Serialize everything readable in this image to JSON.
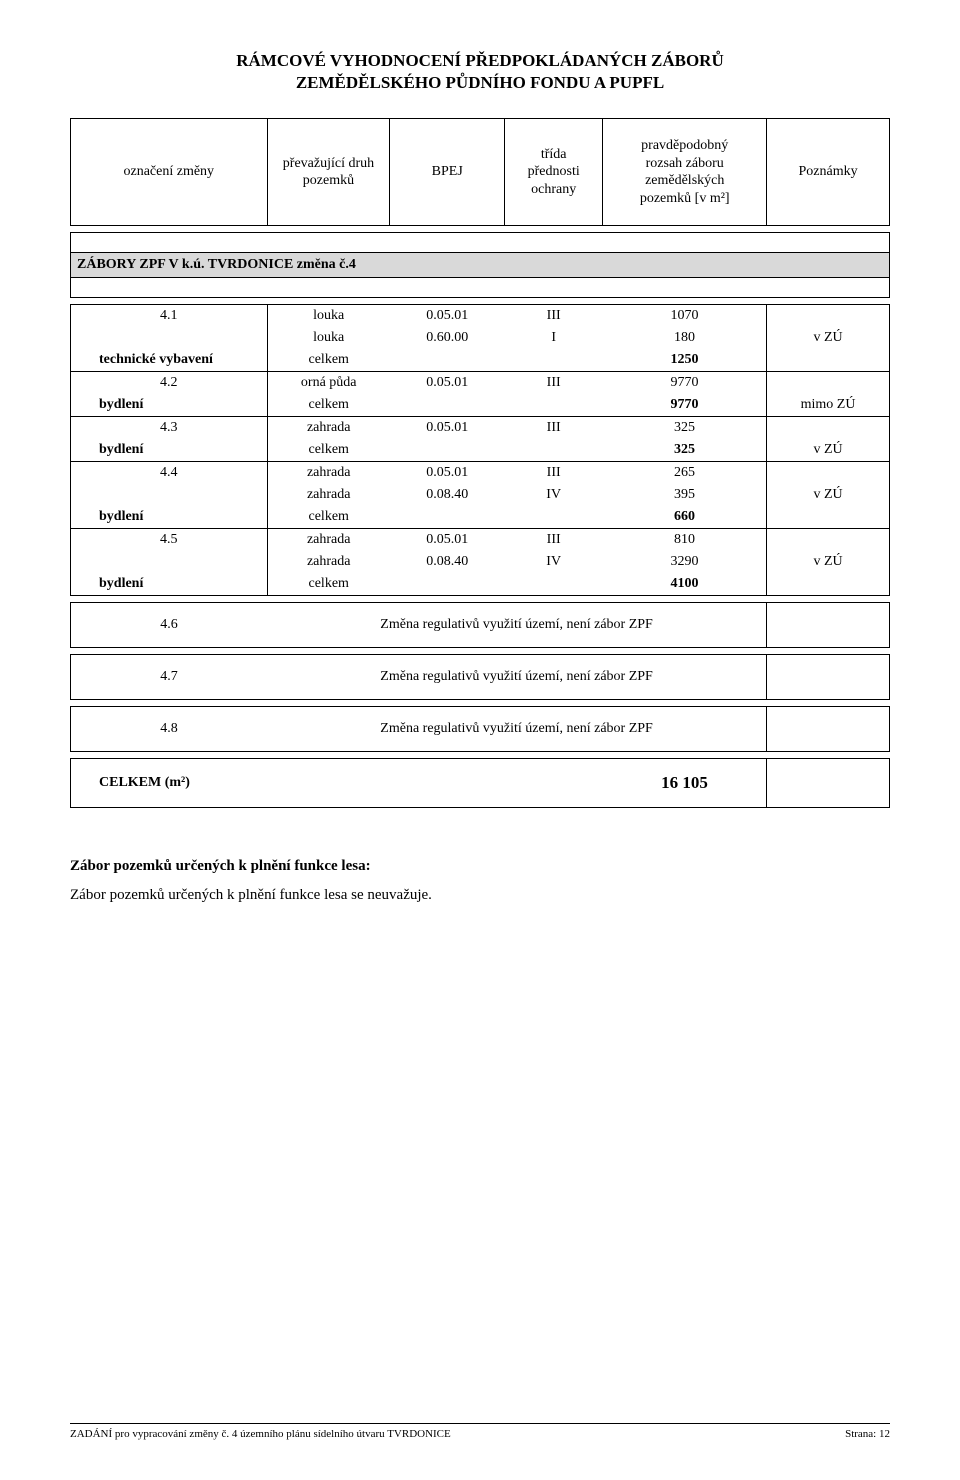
{
  "page_title": {
    "line1": "RÁMCOVÉ VYHODNOCENÍ PŘEDPOKLÁDANÝCH ZÁBORŮ",
    "line2": "ZEMĚDĚLSKÉHO PŮDNÍHO FONDU A PUPFL"
  },
  "header_table": {
    "columns": [
      "označení změny",
      "převažující druh\npozemků",
      "BPEJ",
      "třída\npřednosti\nochrany",
      "pravděpodobný\nrozsah záboru\nzemědělských\npozemků [v m²]",
      "Poznámky"
    ]
  },
  "section_heading": "ZÁBORY ZPF V k.ú. TVRDONICE změna č.4",
  "rows": [
    {
      "oz": "4.1",
      "druh": "louka",
      "bpej": "0.05.01",
      "trida": "III",
      "roz": "1070",
      "pozn": "",
      "sum": false,
      "cluster_start": true
    },
    {
      "oz": "",
      "druh": "louka",
      "bpej": "0.60.00",
      "trida": "I",
      "roz": "180",
      "pozn": "v ZÚ",
      "sum": false
    },
    {
      "oz": "technické vybavení",
      "druh": "celkem",
      "bpej": "",
      "trida": "",
      "roz": "1250",
      "pozn": "",
      "sum": true,
      "cluster_end": true
    },
    {
      "oz": "4.2",
      "druh": "orná půda",
      "bpej": "0.05.01",
      "trida": "III",
      "roz": "9770",
      "pozn": "",
      "sum": false,
      "cluster_start": true,
      "pozn_rowspan": 2
    },
    {
      "oz": "bydlení",
      "druh": "celkem",
      "bpej": "",
      "trida": "",
      "roz": "9770",
      "pozn": "mimo ZÚ",
      "sum": true,
      "cluster_end": true
    },
    {
      "oz": "4.3",
      "druh": "zahrada",
      "bpej": "0.05.01",
      "trida": "III",
      "roz": "325",
      "pozn": "",
      "sum": false,
      "cluster_start": true,
      "pozn_rowspan": 2
    },
    {
      "oz": "bydlení",
      "druh": "celkem",
      "bpej": "",
      "trida": "",
      "roz": "325",
      "pozn": "v ZÚ",
      "sum": true,
      "cluster_end": true
    },
    {
      "oz": "4.4",
      "druh": "zahrada",
      "bpej": "0.05.01",
      "trida": "III",
      "roz": "265",
      "pozn": "",
      "sum": false,
      "cluster_start": true
    },
    {
      "oz": "",
      "druh": "zahrada",
      "bpej": "0.08.40",
      "trida": "IV",
      "roz": "395",
      "pozn": "v ZÚ",
      "sum": false
    },
    {
      "oz": "bydlení",
      "druh": "celkem",
      "bpej": "",
      "trida": "",
      "roz": "660",
      "pozn": "",
      "sum": true,
      "cluster_end": true
    },
    {
      "oz": "4.5",
      "druh": "zahrada",
      "bpej": "0.05.01",
      "trida": "III",
      "roz": "810",
      "pozn": "",
      "sum": false,
      "cluster_start": true
    },
    {
      "oz": "",
      "druh": "zahrada",
      "bpej": "0.08.40",
      "trida": "IV",
      "roz": "3290",
      "pozn": "v ZÚ",
      "sum": false
    },
    {
      "oz": "bydlení",
      "druh": "celkem",
      "bpej": "",
      "trida": "",
      "roz": "4100",
      "pozn": "",
      "sum": true,
      "cluster_end": true
    }
  ],
  "reg_rows": [
    {
      "oz": "4.6",
      "text": "Změna regulativů využití území, není zábor ZPF"
    },
    {
      "oz": "4.7",
      "text": "Změna regulativů využití území, není zábor ZPF"
    },
    {
      "oz": "4.8",
      "text": "Změna regulativů využití území, není zábor ZPF"
    }
  ],
  "total_row": {
    "label": "CELKEM (m²)",
    "value": "16 105"
  },
  "body_text": {
    "heading": "Zábor pozemků určených k plnění funkce lesa:",
    "paragraph": "Zábor pozemků určených k plnění funkce lesa se neuvažuje."
  },
  "footer": {
    "left": "ZADÁNÍ pro vypracování změny č. 4 územního plánu sídelního útvaru TVRDONICE",
    "right_label": "Strana:",
    "right_value": "12"
  },
  "colors": {
    "background": "#ffffff",
    "text": "#000000",
    "section_bg": "#d9d9d9",
    "border": "#000000"
  }
}
